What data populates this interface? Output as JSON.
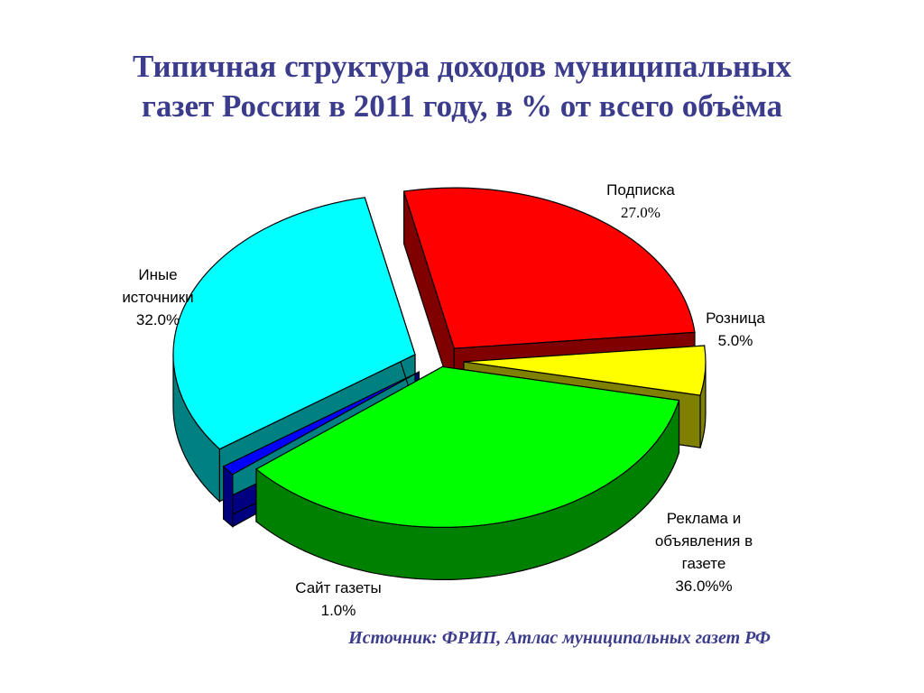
{
  "chart_data": {
    "type": "pie",
    "title_lines": [
      "Типичная структура доходов муниципальных",
      "газет России в 2011 году, в % от всего объёма"
    ],
    "slices": [
      {
        "name": "Подписка",
        "value_label": "27.0%",
        "value": 27.0,
        "color": "#ff0000",
        "side_color": "#800000"
      },
      {
        "name": "Розница",
        "value_label": "5.0%",
        "value": 5.0,
        "color": "#ffff00",
        "side_color": "#808000"
      },
      {
        "name": "Реклама и объявления в газете",
        "value_label": "36.0%%",
        "value": 36.0,
        "color": "#00ff00",
        "side_color": "#008000"
      },
      {
        "name": "Сайт газеты",
        "value_label": "1.0%",
        "value": 1.0,
        "color": "#0000ff",
        "side_color": "#000080"
      },
      {
        "name": "Иные источники",
        "value_label": "32.0%",
        "value": 32.0,
        "color": "#00ffff",
        "side_color": "#008080"
      }
    ],
    "labels": {
      "podpiska": {
        "name": "Подписка",
        "value": "27.0%"
      },
      "roznica": {
        "name": "Розница",
        "value": "5.0%"
      },
      "reklama": {
        "line1": "Реклама и",
        "line2": "объявления в",
        "line3": "газете",
        "value": "36.0%%"
      },
      "sait": {
        "name": "Сайт газеты",
        "value": "1.0%"
      },
      "inye": {
        "line1": "Иные",
        "line2": "источники",
        "value": "32.0%"
      }
    },
    "source": "Источник: ФРИП, Атлас муниципальных газет РФ"
  }
}
